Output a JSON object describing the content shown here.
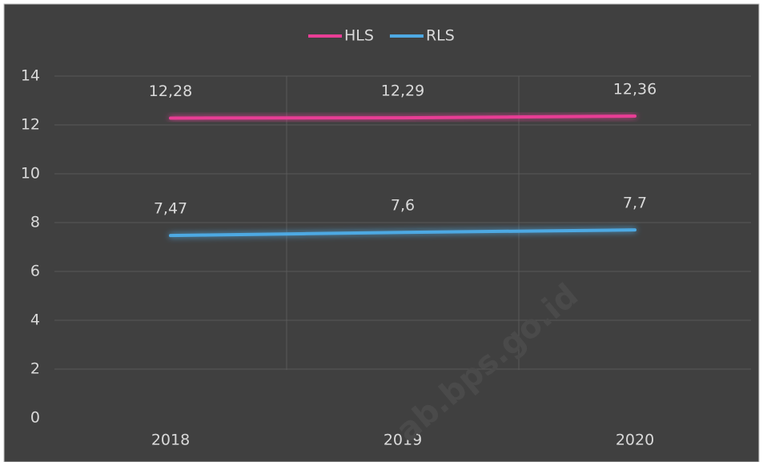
{
  "chart_data": {
    "type": "line",
    "categories": [
      "2018",
      "2019",
      "2020"
    ],
    "series": [
      {
        "name": "HLS",
        "color": "#e83e95",
        "values": [
          12.28,
          12.29,
          12.36
        ],
        "value_labels": [
          "12,28",
          "12,29",
          "12,36"
        ]
      },
      {
        "name": "RLS",
        "color": "#4ea9e3",
        "values": [
          7.47,
          7.6,
          7.7
        ],
        "value_labels": [
          "7,47",
          "7,6",
          "7,7"
        ]
      }
    ],
    "ylim": [
      0,
      14
    ],
    "yticks": [
      0,
      2,
      4,
      6,
      8,
      10,
      12,
      14
    ],
    "grid": true,
    "legend": "top",
    "watermark": "ab.bps.go.id"
  }
}
